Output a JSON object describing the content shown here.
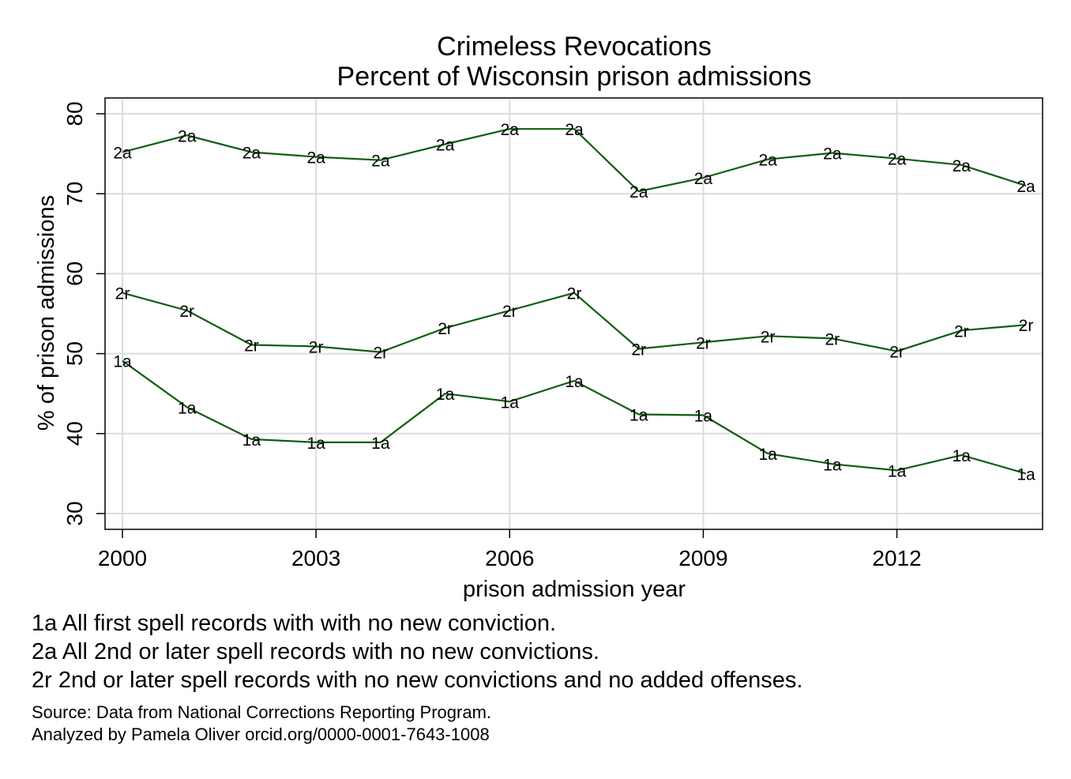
{
  "chart_data": {
    "type": "line",
    "title": "Crimeless Revocations",
    "subtitle": "Percent of Wisconsin prison admissions",
    "xlabel": "prison admission year",
    "ylabel": "% of prison admissions",
    "xlim": [
      2000,
      2014
    ],
    "ylim": [
      30,
      80
    ],
    "x_ticks": [
      "2000",
      "2003",
      "2006",
      "2009",
      "2012"
    ],
    "y_ticks": [
      "30",
      "40",
      "50",
      "60",
      "70",
      "80"
    ],
    "grid": true,
    "legend": "none",
    "line_color": "#0e5e0e",
    "x": [
      2000,
      2001,
      2002,
      2003,
      2004,
      2005,
      2006,
      2007,
      2008,
      2009,
      2010,
      2011,
      2012,
      2013,
      2014
    ],
    "series": [
      {
        "name": "2a",
        "values": [
          75.2,
          77.3,
          75.2,
          74.6,
          74.2,
          76.2,
          78.1,
          78.1,
          70.3,
          72.0,
          74.3,
          75.1,
          74.4,
          73.6,
          71.0
        ]
      },
      {
        "name": "2r",
        "values": [
          57.6,
          55.4,
          51.1,
          50.9,
          50.2,
          53.2,
          55.4,
          57.6,
          50.6,
          51.4,
          52.2,
          51.9,
          50.3,
          52.9,
          53.6
        ]
      },
      {
        "name": "1a",
        "values": [
          49.1,
          43.3,
          39.3,
          38.9,
          38.9,
          45.0,
          44.0,
          46.6,
          42.4,
          42.3,
          37.5,
          36.2,
          35.4,
          37.3,
          35.0
        ]
      }
    ]
  },
  "notes": [
    "1a All first spell records with with no new conviction.",
    "2a All 2nd or later spell records with no new convictions.",
    "2r 2nd or later spell records with no new convictions and no added offenses."
  ],
  "source": [
    "Source: Data from National Corrections Reporting Program.",
    "Analyzed by Pamela Oliver orcid.org/0000-0001-7643-1008"
  ]
}
